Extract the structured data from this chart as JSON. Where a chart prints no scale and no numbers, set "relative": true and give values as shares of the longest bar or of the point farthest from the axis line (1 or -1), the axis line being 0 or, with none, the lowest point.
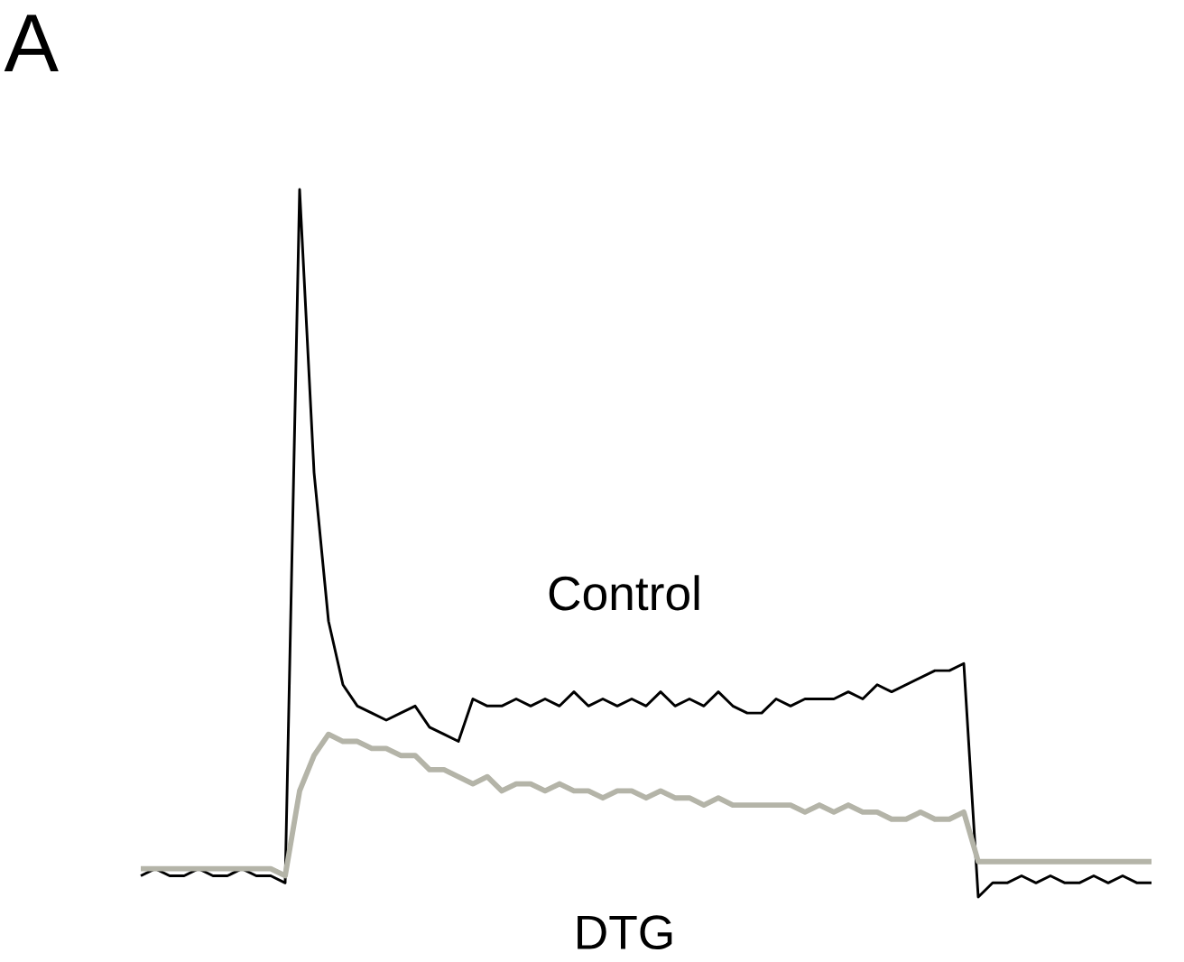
{
  "chart_data": {
    "type": "line",
    "title": "A",
    "relative": true,
    "categories": [
      null,
      null,
      null,
      null,
      null,
      null,
      null,
      null,
      null,
      null,
      null,
      null,
      null,
      null,
      null,
      null,
      null,
      null,
      null,
      null,
      null,
      null,
      null,
      null,
      null,
      null,
      null,
      null,
      null,
      null,
      null,
      null,
      null,
      null,
      null,
      null,
      null,
      null,
      null,
      null,
      null,
      null,
      null,
      null,
      null,
      null,
      null,
      null,
      null,
      null,
      null,
      null,
      null,
      null,
      null,
      null,
      null,
      null,
      null,
      null,
      null,
      null,
      null,
      null,
      null,
      null,
      null,
      null,
      null,
      null,
      null
    ],
    "series": [
      {
        "name": "Control",
        "color": "#000000",
        "values": [
          0.03,
          0.04,
          0.03,
          0.03,
          0.04,
          0.03,
          0.03,
          0.04,
          0.03,
          0.03,
          0.02,
          1.0,
          0.6,
          0.39,
          0.3,
          0.27,
          0.26,
          0.25,
          0.26,
          0.27,
          0.24,
          0.23,
          0.22,
          0.28,
          0.27,
          0.27,
          0.28,
          0.27,
          0.28,
          0.27,
          0.29,
          0.27,
          0.28,
          0.27,
          0.28,
          0.27,
          0.29,
          0.27,
          0.28,
          0.27,
          0.29,
          0.27,
          0.26,
          0.26,
          0.28,
          0.27,
          0.28,
          0.28,
          0.28,
          0.29,
          0.28,
          0.3,
          0.29,
          0.3,
          0.31,
          0.32,
          0.32,
          0.33,
          0.0,
          0.02,
          0.02,
          0.03,
          0.02,
          0.03,
          0.02,
          0.02,
          0.03,
          0.02,
          0.03,
          0.02,
          0.02
        ]
      },
      {
        "name": "DTG",
        "color": "#b4b4a8",
        "values": [
          0.04,
          0.04,
          0.04,
          0.04,
          0.04,
          0.04,
          0.04,
          0.04,
          0.04,
          0.04,
          0.03,
          0.15,
          0.2,
          0.23,
          0.22,
          0.22,
          0.21,
          0.21,
          0.2,
          0.2,
          0.18,
          0.18,
          0.17,
          0.16,
          0.17,
          0.15,
          0.16,
          0.16,
          0.15,
          0.16,
          0.15,
          0.15,
          0.14,
          0.15,
          0.15,
          0.14,
          0.15,
          0.14,
          0.14,
          0.13,
          0.14,
          0.13,
          0.13,
          0.13,
          0.13,
          0.13,
          0.12,
          0.13,
          0.12,
          0.13,
          0.12,
          0.12,
          0.11,
          0.11,
          0.12,
          0.11,
          0.11,
          0.12,
          0.05,
          0.05,
          0.05,
          0.05,
          0.05,
          0.05,
          0.05,
          0.05,
          0.05,
          0.05,
          0.05,
          0.05,
          0.05
        ]
      }
    ]
  }
}
